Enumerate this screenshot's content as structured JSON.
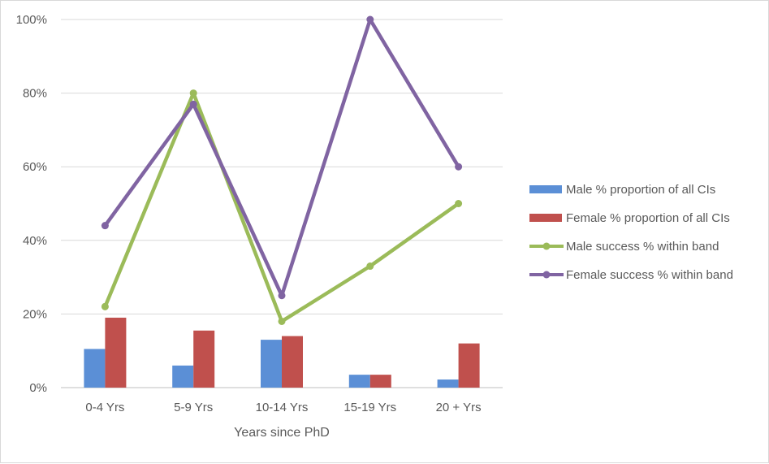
{
  "chart_data": {
    "type": "bar",
    "categories": [
      "0-4 Yrs",
      "5-9 Yrs",
      "10-14 Yrs",
      "15-19 Yrs",
      "20 + Yrs"
    ],
    "xlabel": "Years since PhD",
    "ylabel": "",
    "ylim": [
      0,
      100
    ],
    "yticks": [
      0,
      20,
      40,
      60,
      80,
      100
    ],
    "ytick_labels": [
      "0%",
      "20%",
      "40%",
      "60%",
      "80%",
      "100%"
    ],
    "grid": true,
    "legend_position": "right",
    "bar_series": [
      {
        "name": "Male % proportion of all CIs",
        "type": "bar",
        "color": "#5B8FD6",
        "values": [
          10.5,
          6,
          13,
          3.5,
          2.2
        ]
      },
      {
        "name": "Female % proportion of all CIs",
        "type": "bar",
        "color": "#C0504D",
        "values": [
          19,
          15.5,
          14,
          3.5,
          12
        ]
      }
    ],
    "line_series": [
      {
        "name": "Male success % within band",
        "type": "line",
        "color": "#9BBB59",
        "values": [
          22,
          80,
          18,
          33,
          50
        ]
      },
      {
        "name": "Female success % within band",
        "type": "line",
        "color": "#8064A2",
        "values": [
          44,
          77,
          25,
          100,
          60
        ]
      }
    ]
  }
}
